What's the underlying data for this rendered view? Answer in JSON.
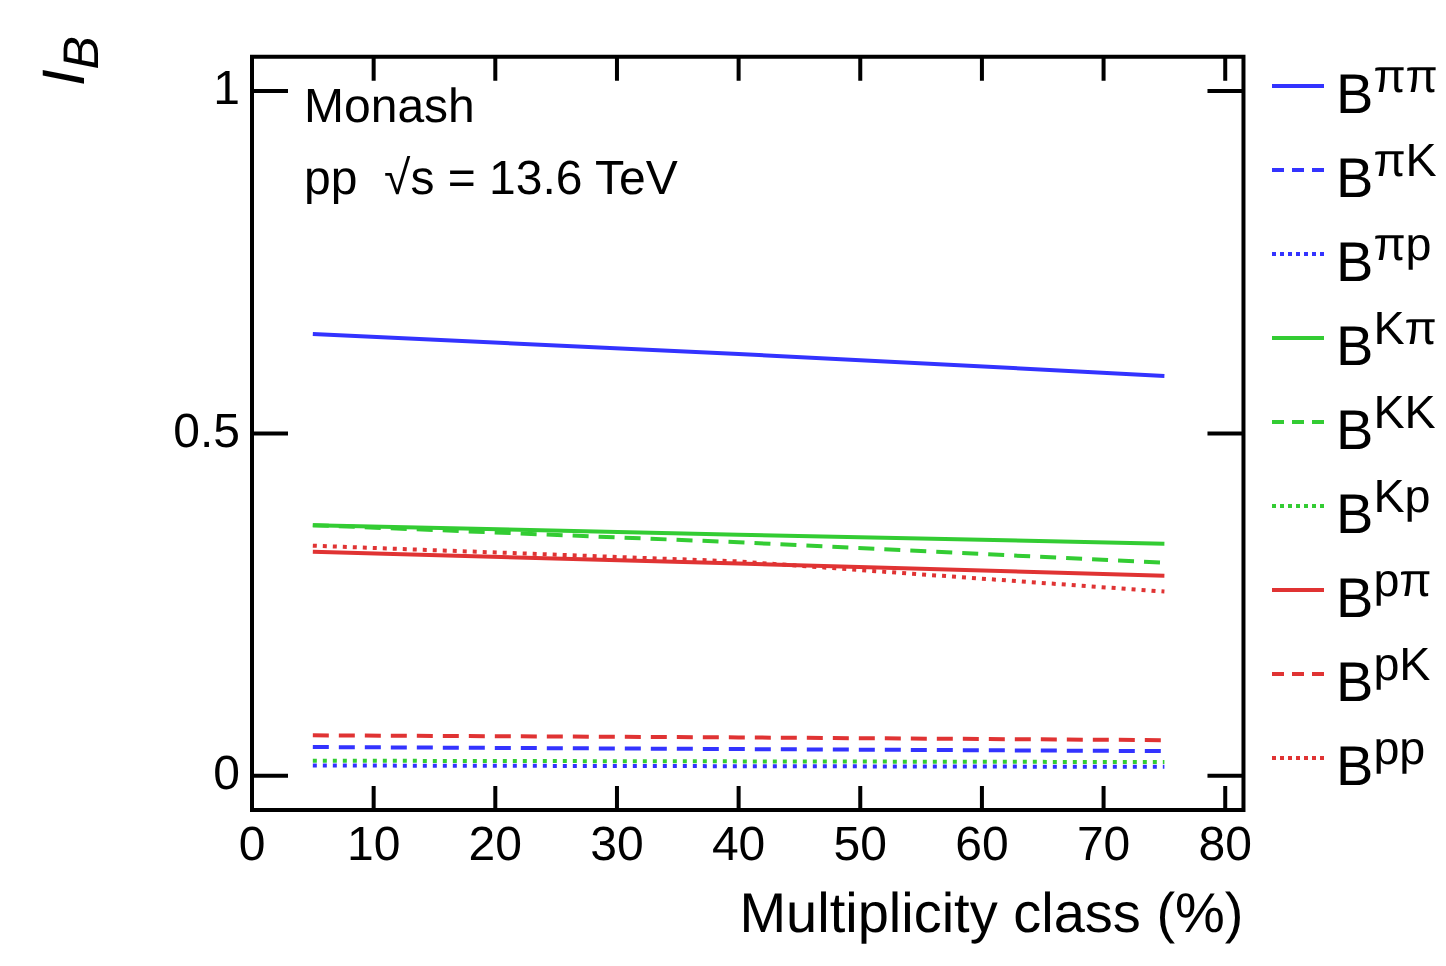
{
  "chart_data": {
    "type": "line",
    "xlabel": "Multiplicity class (%)",
    "ylabel": "I$_{B}$",
    "annotations": [
      "Monash",
      "pp  √s = 13.6 TeV"
    ],
    "x": [
      5,
      40,
      75
    ],
    "xlim": [
      0,
      81.5
    ],
    "xticks": [
      0,
      10,
      20,
      30,
      40,
      50,
      60,
      70,
      80
    ],
    "ylim": [
      -0.05,
      1.05
    ],
    "yticks": [
      0,
      0.5,
      1
    ],
    "grid": false,
    "legend": "right",
    "marker": "none",
    "series": [
      {
        "name": "B$^{ππ}$",
        "color": "#3333ff",
        "line_style": "solid",
        "values": [
          0.645,
          0.616,
          0.584
        ]
      },
      {
        "name": "B$^{πK}$",
        "color": "#3333ff",
        "line_style": "dashed",
        "values": [
          0.042,
          0.039,
          0.036
        ]
      },
      {
        "name": "B$^{πp}$",
        "color": "#3333ff",
        "line_style": "dotted",
        "values": [
          0.015,
          0.014,
          0.013
        ]
      },
      {
        "name": "B$^{Kπ}$",
        "color": "#33cc33",
        "line_style": "solid",
        "values": [
          0.366,
          0.352,
          0.339
        ]
      },
      {
        "name": "B$^{KK}$",
        "color": "#33cc33",
        "line_style": "dashed",
        "values": [
          0.366,
          0.341,
          0.311
        ]
      },
      {
        "name": "B$^{Kp}$",
        "color": "#33cc33",
        "line_style": "dotted",
        "values": [
          0.022,
          0.021,
          0.02
        ]
      },
      {
        "name": "B$^{pπ}$",
        "color": "#e03333",
        "line_style": "solid",
        "values": [
          0.327,
          0.31,
          0.292
        ]
      },
      {
        "name": "B$^{pK}$",
        "color": "#e03333",
        "line_style": "dashed",
        "values": [
          0.059,
          0.056,
          0.052
        ]
      },
      {
        "name": "B$^{pp}$",
        "color": "#e03333",
        "line_style": "dotted",
        "values": [
          0.336,
          0.313,
          0.269
        ]
      }
    ]
  }
}
